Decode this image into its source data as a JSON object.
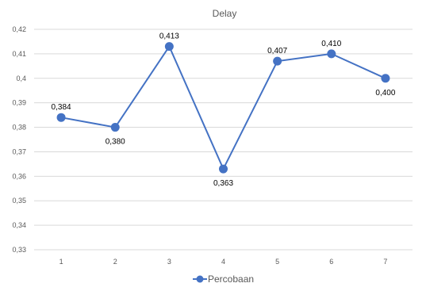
{
  "chart_data": {
    "type": "line",
    "title": "Delay",
    "xlabel": "",
    "ylabel": "",
    "categories": [
      "1",
      "2",
      "3",
      "4",
      "5",
      "6",
      "7"
    ],
    "y_ticks": [
      "0,42",
      "0,41",
      "0,4",
      "0,39",
      "0,38",
      "0,37",
      "0,36",
      "0,35",
      "0,34",
      "0,33"
    ],
    "ylim": [
      0.33,
      0.42
    ],
    "grid": true,
    "legend_position": "bottom",
    "series": [
      {
        "name": "Percobaan",
        "values": [
          0.384,
          0.38,
          0.413,
          0.363,
          0.407,
          0.41,
          0.4
        ],
        "labels": [
          "0,384",
          "0,380",
          "0,413",
          "0,363",
          "0,407",
          "0,410",
          "0,400"
        ],
        "color": "#4472c4"
      }
    ]
  }
}
